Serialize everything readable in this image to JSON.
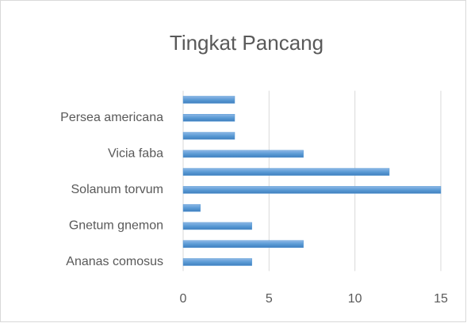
{
  "chart_data": {
    "type": "hbar",
    "title": "Tingkat Pancang",
    "categories": [
      "Ananas comosus",
      null,
      "Gnetum gnemon",
      null,
      "Solanum torvum",
      null,
      "Vicia faba",
      null,
      "Persea americana",
      null
    ],
    "values": [
      4,
      7,
      4,
      1,
      15,
      12,
      7,
      3,
      3,
      3
    ],
    "color": "#5b9bd5",
    "xlim": [
      0,
      15
    ],
    "xticks": [
      0,
      5,
      10,
      15
    ],
    "grid": true
  }
}
